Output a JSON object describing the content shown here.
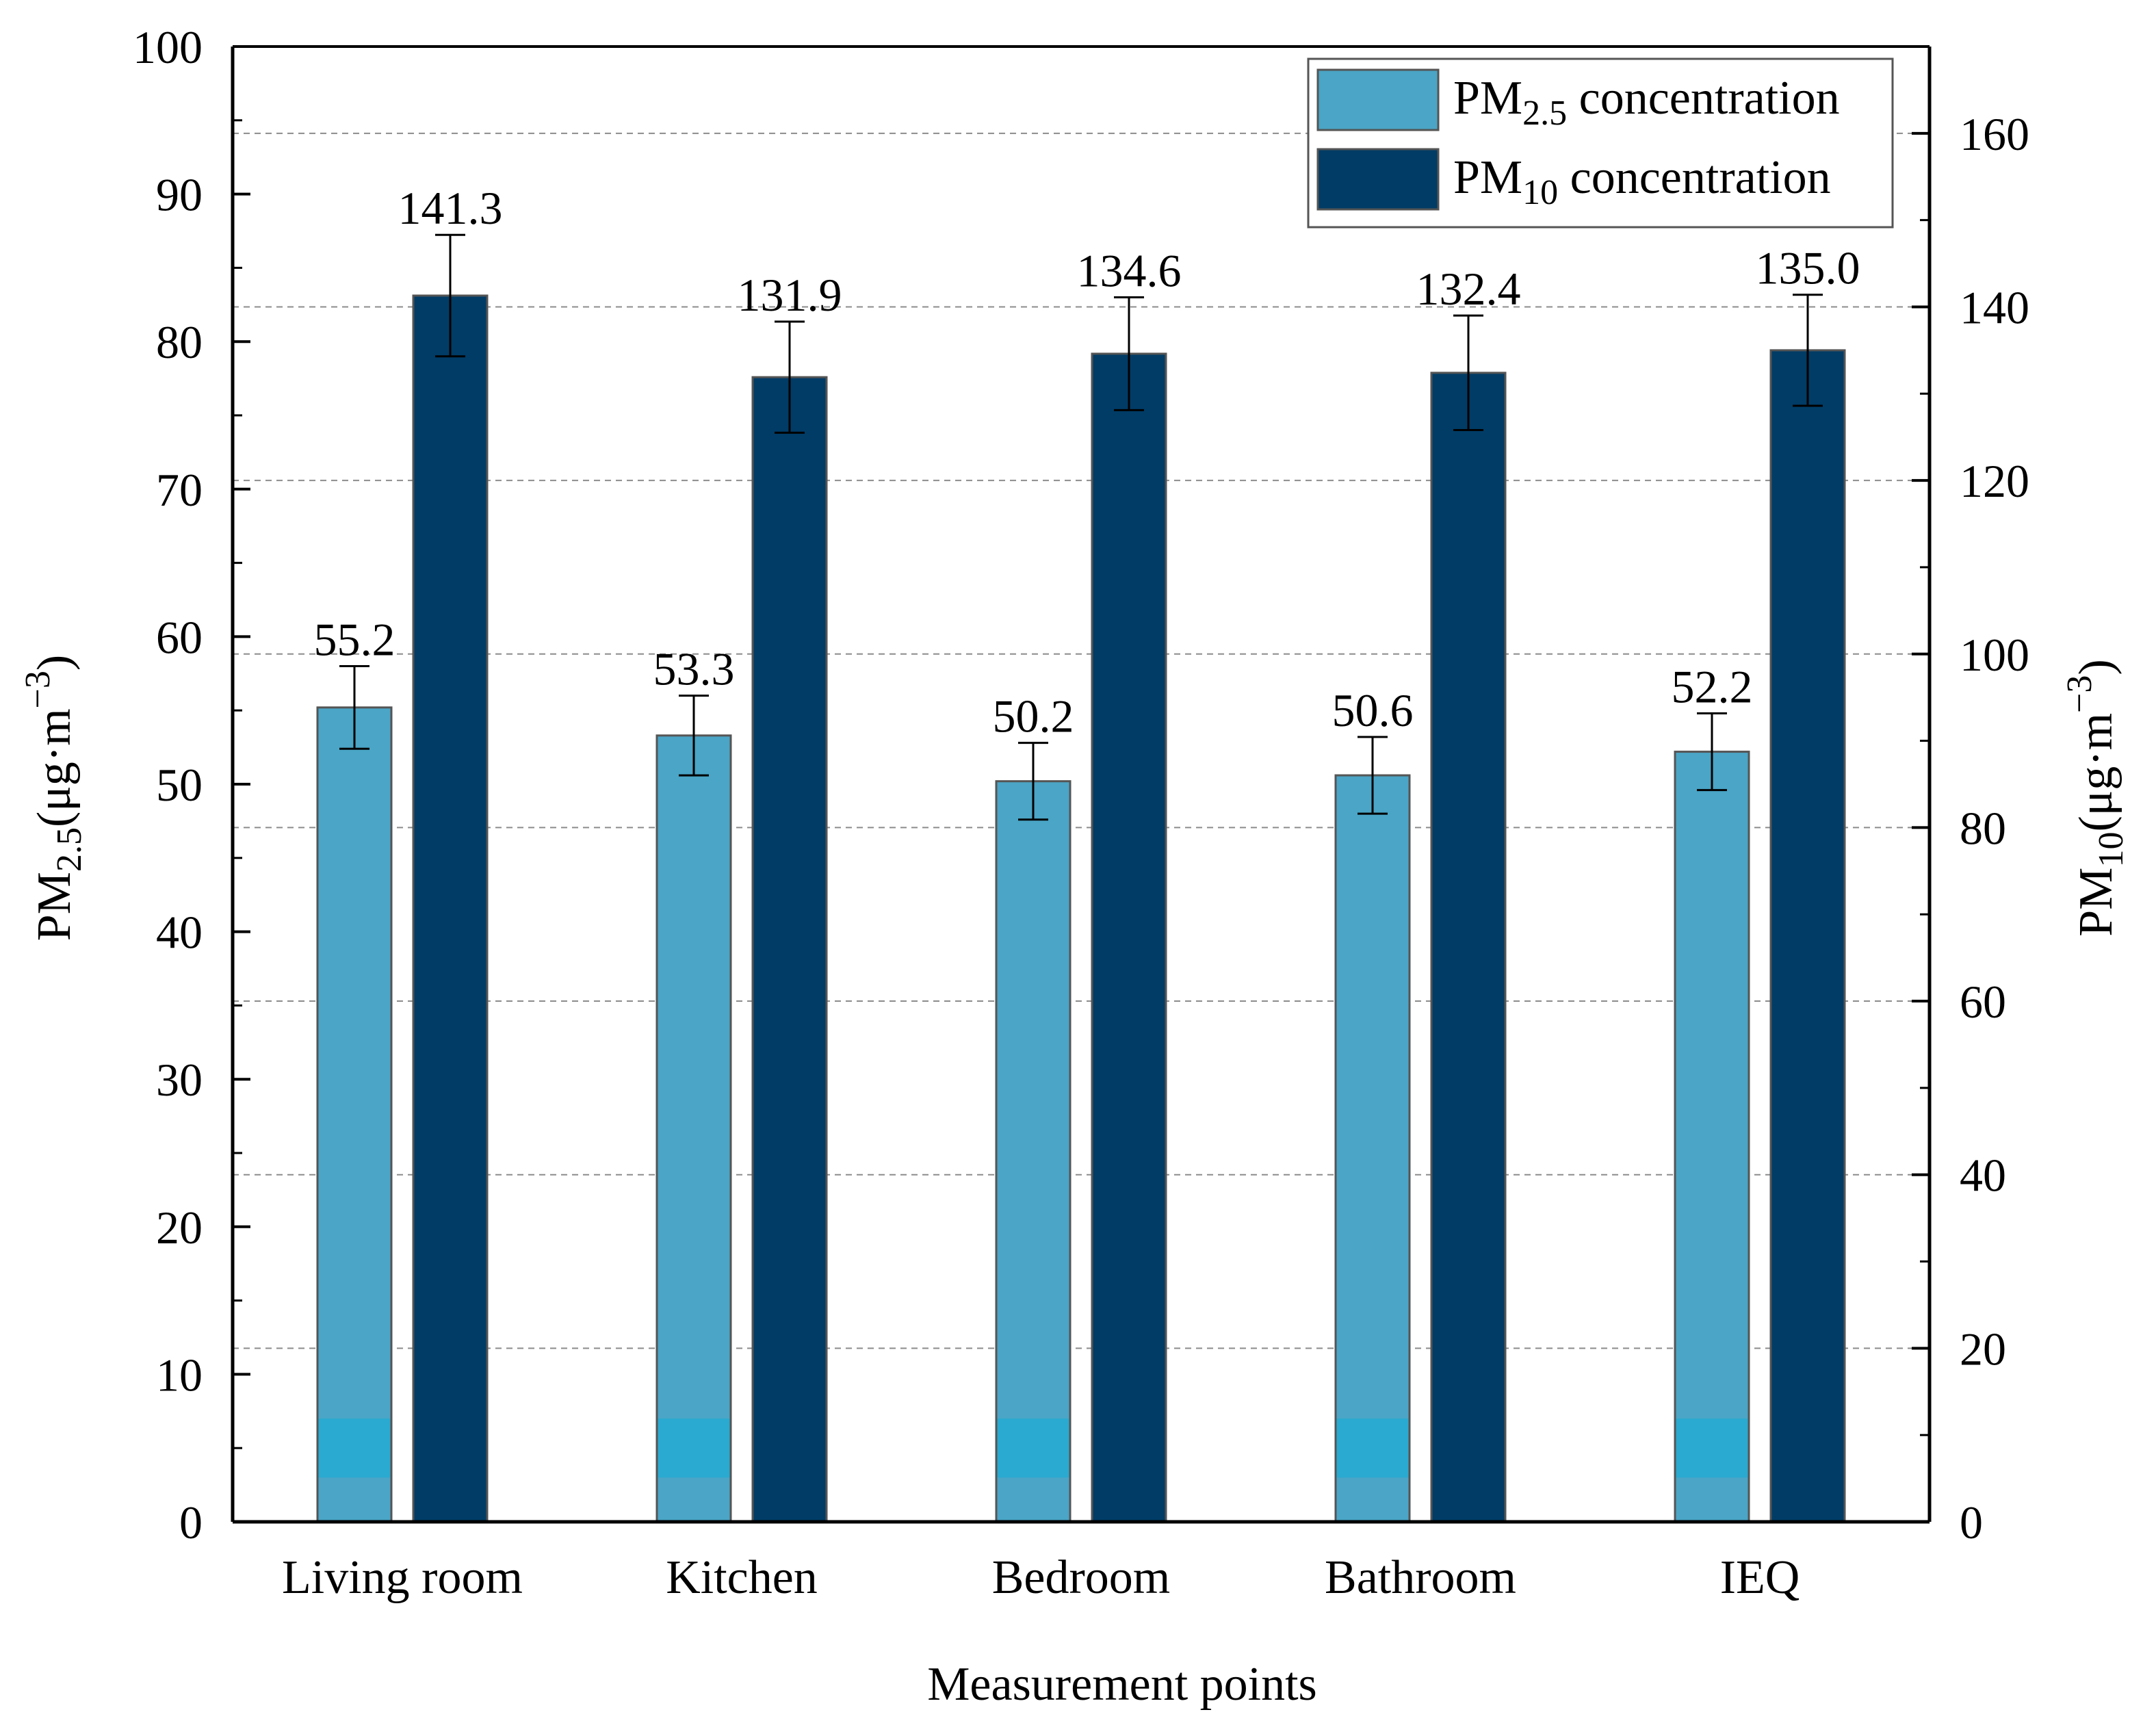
{
  "colors": {
    "pm25": "#4aa5c6",
    "pm25_band": "#2aaad0",
    "pm10": "#003c66",
    "bar_edge": "#555555",
    "grid": "#8c8c8c",
    "axis": "#000000"
  },
  "chart_data": {
    "type": "bar",
    "xlabel": "Measurement points",
    "ylabel_left": {
      "base": "PM",
      "sub": "2.5",
      "unit_prefix": "(μg·m",
      "sup": "−3",
      "unit_suffix": ")"
    },
    "ylabel_right": {
      "base": "PM",
      "sub": "10",
      "unit_prefix": "(μg·m",
      "sup": "−3",
      "unit_suffix": ")"
    },
    "categories": [
      "Living room",
      "Kitchen",
      "Bedroom",
      "Bathroom",
      "IEQ"
    ],
    "left_axis": {
      "ylim": [
        0,
        100
      ],
      "ticks": [
        0,
        10,
        20,
        30,
        40,
        50,
        60,
        70,
        80,
        90,
        100
      ]
    },
    "right_axis": {
      "ylim": [
        0,
        170
      ],
      "ticks": [
        0,
        20,
        40,
        60,
        80,
        100,
        120,
        140,
        160
      ]
    },
    "grid": true,
    "series": [
      {
        "name": "PM2.5 concentration",
        "legend": {
          "base": "PM",
          "sub": "2.5",
          "rest": " concentration"
        },
        "axis": "left",
        "values": [
          55.2,
          53.3,
          50.2,
          50.6,
          52.2
        ],
        "labels": [
          "55.2",
          "53.3",
          "50.2",
          "50.6",
          "52.2"
        ],
        "errors": [
          2.8,
          2.7,
          2.6,
          2.6,
          2.6
        ]
      },
      {
        "name": "PM10 concentration",
        "legend": {
          "base": "PM",
          "sub": "10",
          "rest": " concentration"
        },
        "axis": "right",
        "values": [
          141.3,
          131.9,
          134.6,
          132.4,
          135.0
        ],
        "labels": [
          "141.3",
          "131.9",
          "134.6",
          "132.4",
          "135.0"
        ],
        "errors": [
          7.0,
          6.4,
          6.5,
          6.6,
          6.4
        ]
      }
    ],
    "legend_position": "top-right"
  }
}
